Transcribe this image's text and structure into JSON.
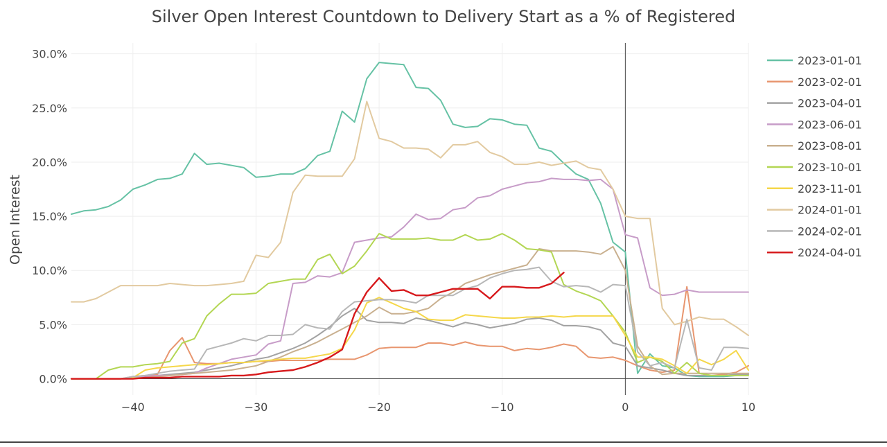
{
  "chart_data": {
    "type": "line",
    "title": "Silver Open Interest Countdown to Delivery Start as a % of Registered",
    "xlabel": "",
    "ylabel": "Open Interest",
    "xlim": [
      -45,
      10
    ],
    "ylim": [
      -0.015,
      0.31
    ],
    "x_ticks": [
      -40,
      -30,
      -20,
      -10,
      0,
      10
    ],
    "x_tick_labels": [
      "−40",
      "−30",
      "−20",
      "−10",
      "0",
      "10"
    ],
    "y_ticks": [
      0,
      0.05,
      0.1,
      0.15,
      0.2,
      0.25,
      0.3
    ],
    "y_tick_labels": [
      "0.0%",
      "5.0%",
      "10.0%",
      "15.0%",
      "20.0%",
      "25.0%",
      "30.0%"
    ],
    "grid": true,
    "legend_position": "right",
    "series": [
      {
        "name": "2023-01-01",
        "color": "#66c2a5",
        "x": [
          -45,
          -44,
          -43,
          -42,
          -41,
          -40,
          -39,
          -38,
          -37,
          -36,
          -35,
          -34,
          -33,
          -32,
          -31,
          -30,
          -29,
          -28,
          -27,
          -26,
          -25,
          -24,
          -23,
          -22,
          -21,
          -20,
          -19,
          -18,
          -17,
          -16,
          -15,
          -14,
          -13,
          -12,
          -11,
          -10,
          -9,
          -8,
          -7,
          -6,
          -5,
          -4,
          -3,
          -2,
          -1,
          0,
          1,
          2,
          3,
          4,
          5,
          6,
          7,
          8,
          9,
          10
        ],
        "y": [
          0.152,
          0.155,
          0.156,
          0.159,
          0.165,
          0.175,
          0.179,
          0.184,
          0.185,
          0.189,
          0.208,
          0.198,
          0.199,
          0.197,
          0.195,
          0.186,
          0.187,
          0.189,
          0.189,
          0.194,
          0.206,
          0.21,
          0.247,
          0.237,
          0.277,
          0.292,
          0.291,
          0.29,
          0.269,
          0.268,
          0.257,
          0.235,
          0.232,
          0.233,
          0.24,
          0.239,
          0.235,
          0.234,
          0.213,
          0.21,
          0.199,
          0.189,
          0.184,
          0.162,
          0.126,
          0.117,
          0.005,
          0.023,
          0.012,
          0.01,
          0.003,
          0.002,
          0.002,
          0.002,
          0.003,
          0.005
        ]
      },
      {
        "name": "2023-02-01",
        "color": "#e8966f",
        "x": [
          -45,
          -44,
          -43,
          -42,
          -41,
          -40,
          -39,
          -38,
          -37,
          -36,
          -35,
          -34,
          -33,
          -32,
          -31,
          -30,
          -29,
          -28,
          -27,
          -26,
          -25,
          -24,
          -23,
          -22,
          -21,
          -20,
          -19,
          -18,
          -17,
          -16,
          -15,
          -14,
          -13,
          -12,
          -11,
          -10,
          -9,
          -8,
          -7,
          -6,
          -5,
          -4,
          -3,
          -2,
          -1,
          0,
          1,
          2,
          3,
          4,
          5,
          6,
          7,
          8,
          9,
          10
        ],
        "y": [
          0,
          0,
          0,
          0,
          0,
          0.002,
          0.003,
          0.004,
          0.026,
          0.038,
          0.015,
          0.014,
          0.014,
          0.015,
          0.015,
          0.016,
          0.016,
          0.017,
          0.017,
          0.017,
          0.017,
          0.018,
          0.018,
          0.018,
          0.022,
          0.028,
          0.029,
          0.029,
          0.029,
          0.033,
          0.033,
          0.031,
          0.034,
          0.031,
          0.03,
          0.03,
          0.026,
          0.028,
          0.027,
          0.029,
          0.032,
          0.03,
          0.02,
          0.019,
          0.02,
          0.017,
          0.012,
          0.008,
          0.006,
          0.008,
          0.085,
          0.005,
          0.003,
          0.004,
          0.006,
          0.012
        ]
      },
      {
        "name": "2023-04-01",
        "color": "#a3a3a3",
        "x": [
          -45,
          -44,
          -43,
          -42,
          -41,
          -40,
          -39,
          -38,
          -37,
          -36,
          -35,
          -34,
          -33,
          -32,
          -31,
          -30,
          -29,
          -28,
          -27,
          -26,
          -25,
          -24,
          -23,
          -22,
          -21,
          -20,
          -19,
          -18,
          -17,
          -16,
          -15,
          -14,
          -13,
          -12,
          -11,
          -10,
          -9,
          -8,
          -7,
          -6,
          -5,
          -4,
          -3,
          -2,
          -1,
          0,
          1,
          2,
          3,
          4,
          5,
          6,
          7,
          8,
          9,
          10
        ],
        "y": [
          0,
          0,
          0,
          0,
          0,
          0.001,
          0.002,
          0.003,
          0.004,
          0.005,
          0.006,
          0.008,
          0.01,
          0.012,
          0.015,
          0.018,
          0.02,
          0.024,
          0.028,
          0.033,
          0.04,
          0.048,
          0.058,
          0.065,
          0.054,
          0.052,
          0.052,
          0.051,
          0.056,
          0.054,
          0.051,
          0.048,
          0.052,
          0.05,
          0.047,
          0.049,
          0.051,
          0.055,
          0.056,
          0.054,
          0.049,
          0.049,
          0.048,
          0.045,
          0.033,
          0.03,
          0.012,
          0.01,
          0.008,
          0.005,
          0.003,
          0.003,
          0.003,
          0.003,
          0.004,
          0.004
        ]
      },
      {
        "name": "2023-06-01",
        "color": "#c79cc8",
        "x": [
          -45,
          -44,
          -43,
          -42,
          -41,
          -40,
          -39,
          -38,
          -37,
          -36,
          -35,
          -34,
          -33,
          -32,
          -31,
          -30,
          -29,
          -28,
          -27,
          -26,
          -25,
          -24,
          -23,
          -22,
          -21,
          -20,
          -19,
          -18,
          -17,
          -16,
          -15,
          -14,
          -13,
          -12,
          -11,
          -10,
          -9,
          -8,
          -7,
          -6,
          -5,
          -4,
          -3,
          -2,
          -1,
          0,
          1,
          2,
          3,
          4,
          5,
          6,
          7,
          8,
          9,
          10
        ],
        "y": [
          0,
          0,
          0,
          0,
          0,
          0.001,
          0.002,
          0.003,
          0.003,
          0.004,
          0.005,
          0.01,
          0.014,
          0.018,
          0.02,
          0.022,
          0.032,
          0.035,
          0.088,
          0.089,
          0.095,
          0.094,
          0.098,
          0.126,
          0.128,
          0.13,
          0.131,
          0.14,
          0.152,
          0.147,
          0.148,
          0.156,
          0.158,
          0.167,
          0.169,
          0.175,
          0.178,
          0.181,
          0.182,
          0.185,
          0.184,
          0.184,
          0.183,
          0.184,
          0.175,
          0.133,
          0.13,
          0.084,
          0.077,
          0.078,
          0.082,
          0.08,
          0.08,
          0.08,
          0.08,
          0.08
        ]
      },
      {
        "name": "2023-08-01",
        "color": "#c9b08f",
        "x": [
          -45,
          -44,
          -43,
          -42,
          -41,
          -40,
          -39,
          -38,
          -37,
          -36,
          -35,
          -34,
          -33,
          -32,
          -31,
          -30,
          -29,
          -28,
          -27,
          -26,
          -25,
          -24,
          -23,
          -22,
          -21,
          -20,
          -19,
          -18,
          -17,
          -16,
          -15,
          -14,
          -13,
          -12,
          -11,
          -10,
          -9,
          -8,
          -7,
          -6,
          -5,
          -4,
          -3,
          -2,
          -1,
          0,
          1,
          2,
          3,
          4,
          5,
          6,
          7,
          8,
          9,
          10
        ],
        "y": [
          0,
          0,
          0,
          0,
          0,
          0.001,
          0.001,
          0.002,
          0.003,
          0.004,
          0.005,
          0.006,
          0.007,
          0.008,
          0.01,
          0.012,
          0.016,
          0.02,
          0.025,
          0.029,
          0.034,
          0.04,
          0.046,
          0.052,
          0.058,
          0.066,
          0.06,
          0.06,
          0.062,
          0.065,
          0.074,
          0.08,
          0.088,
          0.092,
          0.096,
          0.099,
          0.102,
          0.105,
          0.12,
          0.118,
          0.118,
          0.118,
          0.117,
          0.115,
          0.122,
          0.1,
          0.03,
          0.012,
          0.004,
          0.005,
          0.005,
          0.005,
          0.005,
          0.005,
          0.005,
          0.005
        ]
      },
      {
        "name": "2023-10-01",
        "color": "#b3d653",
        "x": [
          -45,
          -44,
          -43,
          -42,
          -41,
          -40,
          -39,
          -38,
          -37,
          -36,
          -35,
          -34,
          -33,
          -32,
          -31,
          -30,
          -29,
          -28,
          -27,
          -26,
          -25,
          -24,
          -23,
          -22,
          -21,
          -20,
          -19,
          -18,
          -17,
          -16,
          -15,
          -14,
          -13,
          -12,
          -11,
          -10,
          -9,
          -8,
          -7,
          -6,
          -5,
          -4,
          -3,
          -2,
          -1,
          0,
          1,
          2,
          3,
          4,
          5,
          6,
          7,
          8,
          9,
          10
        ],
        "y": [
          0,
          0,
          0,
          0.008,
          0.011,
          0.011,
          0.013,
          0.014,
          0.016,
          0.033,
          0.037,
          0.058,
          0.069,
          0.078,
          0.078,
          0.079,
          0.088,
          0.09,
          0.092,
          0.092,
          0.11,
          0.115,
          0.097,
          0.104,
          0.118,
          0.134,
          0.129,
          0.129,
          0.129,
          0.13,
          0.128,
          0.128,
          0.133,
          0.128,
          0.129,
          0.134,
          0.128,
          0.12,
          0.119,
          0.117,
          0.087,
          0.081,
          0.077,
          0.072,
          0.058,
          0.043,
          0.015,
          0.02,
          0.016,
          0.005,
          0.015,
          0.005,
          0.003,
          0.003,
          0.003,
          0.003
        ]
      },
      {
        "name": "2023-11-01",
        "color": "#f5d74a",
        "x": [
          -45,
          -44,
          -43,
          -42,
          -41,
          -40,
          -39,
          -38,
          -37,
          -36,
          -35,
          -34,
          -33,
          -32,
          -31,
          -30,
          -29,
          -28,
          -27,
          -26,
          -25,
          -24,
          -23,
          -22,
          -21,
          -20,
          -19,
          -18,
          -17,
          -16,
          -15,
          -14,
          -13,
          -12,
          -11,
          -10,
          -9,
          -8,
          -7,
          -6,
          -5,
          -4,
          -3,
          -2,
          -1,
          0,
          1,
          2,
          3,
          4,
          5,
          6,
          7,
          8,
          9,
          10
        ],
        "y": [
          0,
          0,
          0,
          0,
          0,
          0.001,
          0.008,
          0.01,
          0.011,
          0.012,
          0.013,
          0.013,
          0.014,
          0.015,
          0.015,
          0.016,
          0.017,
          0.018,
          0.019,
          0.019,
          0.021,
          0.023,
          0.028,
          0.045,
          0.07,
          0.075,
          0.07,
          0.065,
          0.062,
          0.055,
          0.054,
          0.054,
          0.059,
          0.058,
          0.057,
          0.056,
          0.056,
          0.057,
          0.057,
          0.058,
          0.057,
          0.058,
          0.058,
          0.058,
          0.058,
          0.04,
          0.02,
          0.02,
          0.018,
          0.012,
          0.005,
          0.018,
          0.013,
          0.018,
          0.026,
          0.008
        ]
      },
      {
        "name": "2024-01-01",
        "color": "#e2caa0",
        "x": [
          -45,
          -44,
          -43,
          -42,
          -41,
          -40,
          -39,
          -38,
          -37,
          -36,
          -35,
          -34,
          -33,
          -32,
          -31,
          -30,
          -29,
          -28,
          -27,
          -26,
          -25,
          -24,
          -23,
          -22,
          -21,
          -20,
          -19,
          -18,
          -17,
          -16,
          -15,
          -14,
          -13,
          -12,
          -11,
          -10,
          -9,
          -8,
          -7,
          -6,
          -5,
          -4,
          -3,
          -2,
          -1,
          0,
          1,
          2,
          3,
          4,
          5,
          6,
          7,
          8,
          9,
          10
        ],
        "y": [
          0.071,
          0.071,
          0.074,
          0.08,
          0.086,
          0.086,
          0.086,
          0.086,
          0.088,
          0.087,
          0.086,
          0.086,
          0.087,
          0.088,
          0.09,
          0.114,
          0.112,
          0.126,
          0.172,
          0.188,
          0.187,
          0.187,
          0.187,
          0.203,
          0.256,
          0.222,
          0.219,
          0.213,
          0.213,
          0.212,
          0.204,
          0.216,
          0.216,
          0.219,
          0.209,
          0.205,
          0.198,
          0.198,
          0.2,
          0.197,
          0.199,
          0.201,
          0.195,
          0.193,
          0.175,
          0.15,
          0.148,
          0.148,
          0.065,
          0.05,
          0.053,
          0.057,
          0.055,
          0.055,
          0.048,
          0.04
        ]
      },
      {
        "name": "2024-02-01",
        "color": "#b7b7b7",
        "x": [
          -45,
          -44,
          -43,
          -42,
          -41,
          -40,
          -39,
          -38,
          -37,
          -36,
          -35,
          -34,
          -33,
          -32,
          -31,
          -30,
          -29,
          -28,
          -27,
          -26,
          -25,
          -24,
          -23,
          -22,
          -21,
          -20,
          -19,
          -18,
          -17,
          -16,
          -15,
          -14,
          -13,
          -12,
          -11,
          -10,
          -9,
          -8,
          -7,
          -6,
          -5,
          -4,
          -3,
          -2,
          -1,
          0,
          1,
          2,
          3,
          4,
          5,
          6,
          7,
          8,
          9,
          10
        ],
        "y": [
          0,
          0,
          0,
          0,
          0,
          0.002,
          0.003,
          0.005,
          0.007,
          0.008,
          0.009,
          0.027,
          0.03,
          0.033,
          0.037,
          0.035,
          0.04,
          0.04,
          0.041,
          0.05,
          0.047,
          0.046,
          0.062,
          0.071,
          0.072,
          0.073,
          0.073,
          0.072,
          0.07,
          0.077,
          0.077,
          0.077,
          0.083,
          0.086,
          0.093,
          0.097,
          0.1,
          0.101,
          0.103,
          0.09,
          0.085,
          0.086,
          0.085,
          0.08,
          0.087,
          0.086,
          0.025,
          0.012,
          0.015,
          0.01,
          0.055,
          0.01,
          0.008,
          0.029,
          0.029,
          0.028
        ]
      },
      {
        "name": "2024-04-01",
        "color": "#d7191c",
        "x": [
          -45,
          -44,
          -43,
          -42,
          -41,
          -40,
          -39,
          -38,
          -37,
          -36,
          -35,
          -34,
          -33,
          -32,
          -31,
          -30,
          -29,
          -28,
          -27,
          -26,
          -25,
          -24,
          -23,
          -22,
          -21,
          -20,
          -19,
          -18,
          -17,
          -16,
          -15,
          -14,
          -13,
          -12,
          -11,
          -10,
          -9,
          -8,
          -7,
          -6,
          -5
        ],
        "y": [
          0,
          0,
          0,
          0,
          0,
          0,
          0.001,
          0.001,
          0.001,
          0.002,
          0.002,
          0.002,
          0.002,
          0.003,
          0.003,
          0.004,
          0.006,
          0.007,
          0.008,
          0.011,
          0.015,
          0.02,
          0.027,
          0.06,
          0.08,
          0.093,
          0.081,
          0.082,
          0.077,
          0.077,
          0.08,
          0.083,
          0.083,
          0.083,
          0.074,
          0.085,
          0.085,
          0.084,
          0.084,
          0.088,
          0.098
        ]
      }
    ]
  }
}
